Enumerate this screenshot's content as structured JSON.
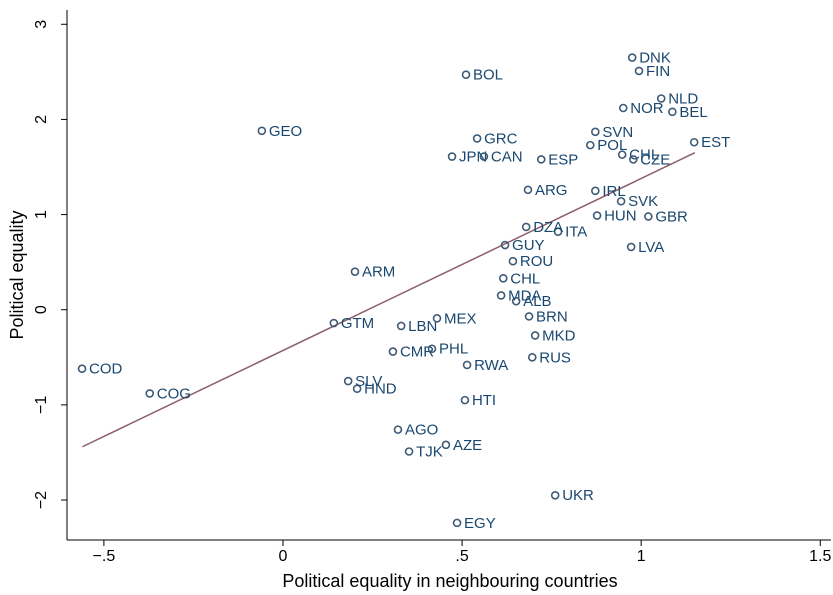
{
  "chart_data": {
    "type": "scatter",
    "x_label": "Political equality in neighbouring countries",
    "y_label": "Political equality",
    "xlim": [
      -0.603,
      1.53
    ],
    "ylim": [
      -2.42,
      3.15
    ],
    "xticks": [
      {
        "value": -0.5,
        "label": "−.5"
      },
      0,
      {
        "value": 0.5,
        "label": ".5"
      },
      1,
      1.5
    ],
    "yticks": [
      {
        "value": -2,
        "label": "−2"
      },
      {
        "value": -1,
        "label": "−1"
      },
      0,
      1,
      2,
      3
    ],
    "marker_color": "#3e5a76",
    "label_color": "#1a476f",
    "fit_color": "#8c5e66",
    "fit_line": {
      "x": [
        -0.56,
        1.15
      ],
      "y": [
        -1.44,
        1.65
      ]
    },
    "labels": [
      "COD",
      "COG",
      "GEO",
      "BOL",
      "GRC",
      "JPN",
      "CAN",
      "DNK",
      "FIN",
      "NLD",
      "NOR",
      "BEL",
      "SVN",
      "POL",
      "EST",
      "CHL",
      "CZE",
      "ESP",
      "IRL",
      "SVK",
      "HUN",
      "GBR",
      "ITA",
      "LVA",
      "ARG",
      "DZA",
      "GUY",
      "ROU",
      "CHL",
      "MDA",
      "ALB",
      "BRN",
      "MKD",
      "RUS",
      "GTM",
      "LBN",
      "MEX",
      "CMR",
      "PHL",
      "RWA",
      "HND",
      "SLV",
      "HTI",
      "AGO",
      "AZE",
      "TJK",
      "UKR",
      "EGY",
      "ARM"
    ],
    "x": [
      -0.561,
      -0.372,
      -0.059,
      0.511,
      0.542,
      0.472,
      0.561,
      0.975,
      0.994,
      1.056,
      0.95,
      1.087,
      0.872,
      0.858,
      1.148,
      0.947,
      0.978,
      0.721,
      0.872,
      0.944,
      0.877,
      1.02,
      0.768,
      0.972,
      0.684,
      0.679,
      0.62,
      0.642,
      0.615,
      0.609,
      0.651,
      0.687,
      0.704,
      0.696,
      0.142,
      0.33,
      0.43,
      0.307,
      0.416,
      0.514,
      0.207,
      0.182,
      0.508,
      0.321,
      0.455,
      0.352,
      0.76,
      0.486,
      0.201
    ],
    "y": [
      -0.62,
      -0.88,
      1.88,
      2.47,
      1.8,
      1.61,
      1.61,
      2.65,
      2.51,
      2.22,
      2.12,
      2.08,
      1.87,
      1.73,
      1.76,
      1.63,
      1.58,
      1.58,
      1.25,
      1.14,
      0.99,
      0.98,
      0.82,
      0.66,
      1.26,
      0.87,
      0.68,
      0.51,
      0.33,
      0.15,
      0.09,
      -0.07,
      -0.27,
      -0.5,
      -0.14,
      -0.17,
      -0.09,
      -0.44,
      -0.41,
      -0.58,
      -0.83,
      -0.75,
      -0.95,
      -1.26,
      -1.42,
      -1.49,
      -1.95,
      -2.24,
      0.4
    ]
  }
}
